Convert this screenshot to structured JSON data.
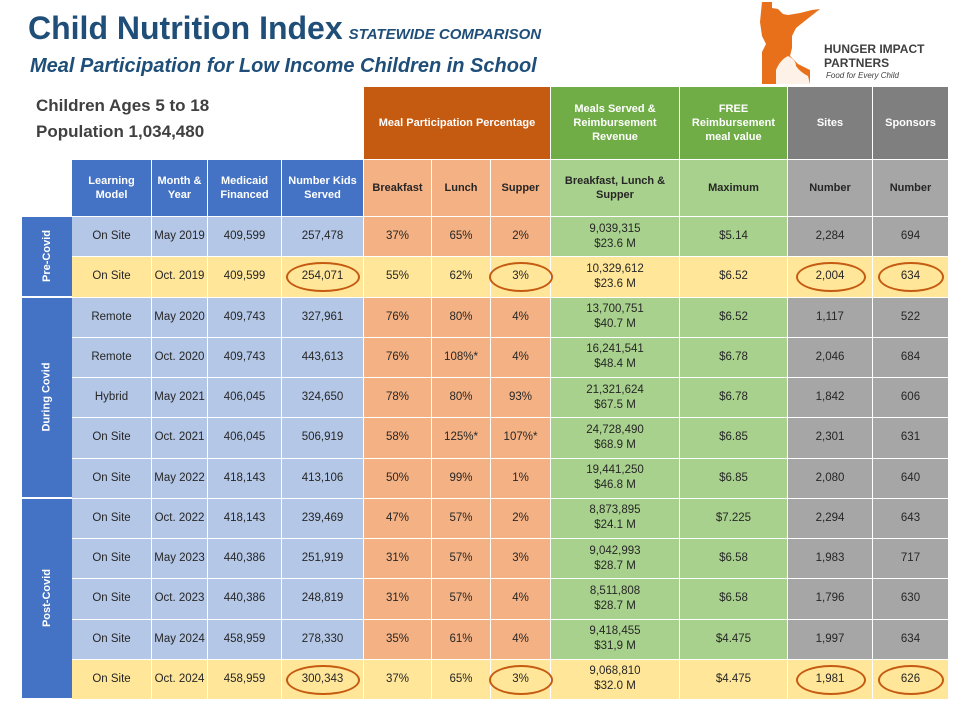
{
  "title": "Child Nutrition Index",
  "title_sub": "STATEWIDE COMPARISON",
  "subtitle": "Meal Participation for Low Income Children in School",
  "info": {
    "line1": "Children Ages 5 to 18",
    "line2": "Population 1,034,480"
  },
  "logo": {
    "name1": "HUNGER IMPACT",
    "name2": "PARTNERS",
    "tagline": "Food for Every Child"
  },
  "group_headers": {
    "meal_participation": "Meal Participation Percentage",
    "meals_served": "Meals Served & Reimbursement Revenue",
    "free_reimbursement": "FREE Reimbursement meal value",
    "sites": "Sites",
    "sponsors": "Sponsors"
  },
  "columns": [
    "Learning Model",
    "Month & Year",
    "Medicaid Financed",
    "Number Kids Served",
    "Breakfast",
    "Lunch",
    "Supper",
    "Breakfast, Lunch & Supper",
    "Maximum",
    "Number",
    "Number"
  ],
  "periods": [
    {
      "label": "Pre-Covid"
    },
    {
      "label": "During Covid"
    },
    {
      "label": "Post-Covid"
    }
  ],
  "rows": [
    {
      "model": "On Site",
      "date": "May 2019",
      "medicaid": "409,599",
      "kids": "257,478",
      "breakfast": "37%",
      "lunch": "65%",
      "supper": "2%",
      "meals": "9,039,315",
      "revenue": "$23.6 M",
      "max": "$5.14",
      "sites": "2,284",
      "sponsors": "694"
    },
    {
      "model": "On Site",
      "date": "Oct. 2019",
      "medicaid": "409,599",
      "kids": "254,071",
      "breakfast": "55%",
      "lunch": "62%",
      "supper": "3%",
      "meals": "10,329,612",
      "revenue": "$23.6 M",
      "max": "$6.52",
      "sites": "2,004",
      "sponsors": "634"
    },
    {
      "model": "Remote",
      "date": "May 2020",
      "medicaid": "409,743",
      "kids": "327,961",
      "breakfast": "76%",
      "lunch": "80%",
      "supper": "4%",
      "meals": "13,700,751",
      "revenue": "$40.7 M",
      "max": "$6.52",
      "sites": "1,117",
      "sponsors": "522"
    },
    {
      "model": "Remote",
      "date": "Oct. 2020",
      "medicaid": "409,743",
      "kids": "443,613",
      "breakfast": "76%",
      "lunch": "108%*",
      "supper": "4%",
      "meals": "16,241,541",
      "revenue": "$48.4 M",
      "max": "$6.78",
      "sites": "2,046",
      "sponsors": "684"
    },
    {
      "model": "Hybrid",
      "date": "May 2021",
      "medicaid": "406,045",
      "kids": "324,650",
      "breakfast": "78%",
      "lunch": "80%",
      "supper": "93%",
      "meals": "21,321,624",
      "revenue": "$67.5 M",
      "max": "$6.78",
      "sites": "1,842",
      "sponsors": "606"
    },
    {
      "model": "On Site",
      "date": "Oct. 2021",
      "medicaid": "406,045",
      "kids": "506,919",
      "breakfast": "58%",
      "lunch": "125%*",
      "supper": "107%*",
      "meals": "24,728,490",
      "revenue": "$68.9 M",
      "max": "$6.85",
      "sites": "2,301",
      "sponsors": "631"
    },
    {
      "model": "On Site",
      "date": "May 2022",
      "medicaid": "418,143",
      "kids": "413,106",
      "breakfast": "50%",
      "lunch": "99%",
      "supper": "1%",
      "meals": "19,441,250",
      "revenue": "$46.8 M",
      "max": "$6.85",
      "sites": "2,080",
      "sponsors": "640"
    },
    {
      "model": "On Site",
      "date": "Oct. 2022",
      "medicaid": "418,143",
      "kids": "239,469",
      "breakfast": "47%",
      "lunch": "57%",
      "supper": "2%",
      "meals": "8,873,895",
      "revenue": "$24.1 M",
      "max": "$7.225",
      "sites": "2,294",
      "sponsors": "643"
    },
    {
      "model": "On Site",
      "date": "May 2023",
      "medicaid": "440,386",
      "kids": "251,919",
      "breakfast": "31%",
      "lunch": "57%",
      "supper": "3%",
      "meals": "9,042,993",
      "revenue": "$28.7 M",
      "max": "$6.58",
      "sites": "1,983",
      "sponsors": "717"
    },
    {
      "model": "On Site",
      "date": "Oct. 2023",
      "medicaid": "440,386",
      "kids": "248,819",
      "breakfast": "31%",
      "lunch": "57%",
      "supper": "4%",
      "meals": "8,511,808",
      "revenue": "$28.7 M",
      "max": "$6.58",
      "sites": "1,796",
      "sponsors": "630"
    },
    {
      "model": "On Site",
      "date": "May 2024",
      "medicaid": "458,959",
      "kids": "278,330",
      "breakfast": "35%",
      "lunch": "61%",
      "supper": "4%",
      "meals": "9,418,455",
      "revenue": "$31,9 M",
      "max": "$4.475",
      "sites": "1,997",
      "sponsors": "634"
    },
    {
      "model": "On Site",
      "date": "Oct. 2024",
      "medicaid": "458,959",
      "kids": "300,343",
      "breakfast": "37%",
      "lunch": "65%",
      "supper": "3%",
      "meals": "9,068,810",
      "revenue": "$32.0 M",
      "max": "$4.475",
      "sites": "1,981",
      "sponsors": "626"
    }
  ],
  "colors": {
    "title": "#1f4e79",
    "header_blue": "#4472c4",
    "header_orange": "#c55a11",
    "header_green": "#70ad47",
    "header_gray": "#7f7f7f",
    "body_blue": "#b4c7e7",
    "body_orange": "#f4b183",
    "body_green": "#a9d18e",
    "body_gray": "#a6a6a6",
    "highlight": "#ffe699",
    "circle": "#c55a11",
    "logo": "#e8701a"
  }
}
